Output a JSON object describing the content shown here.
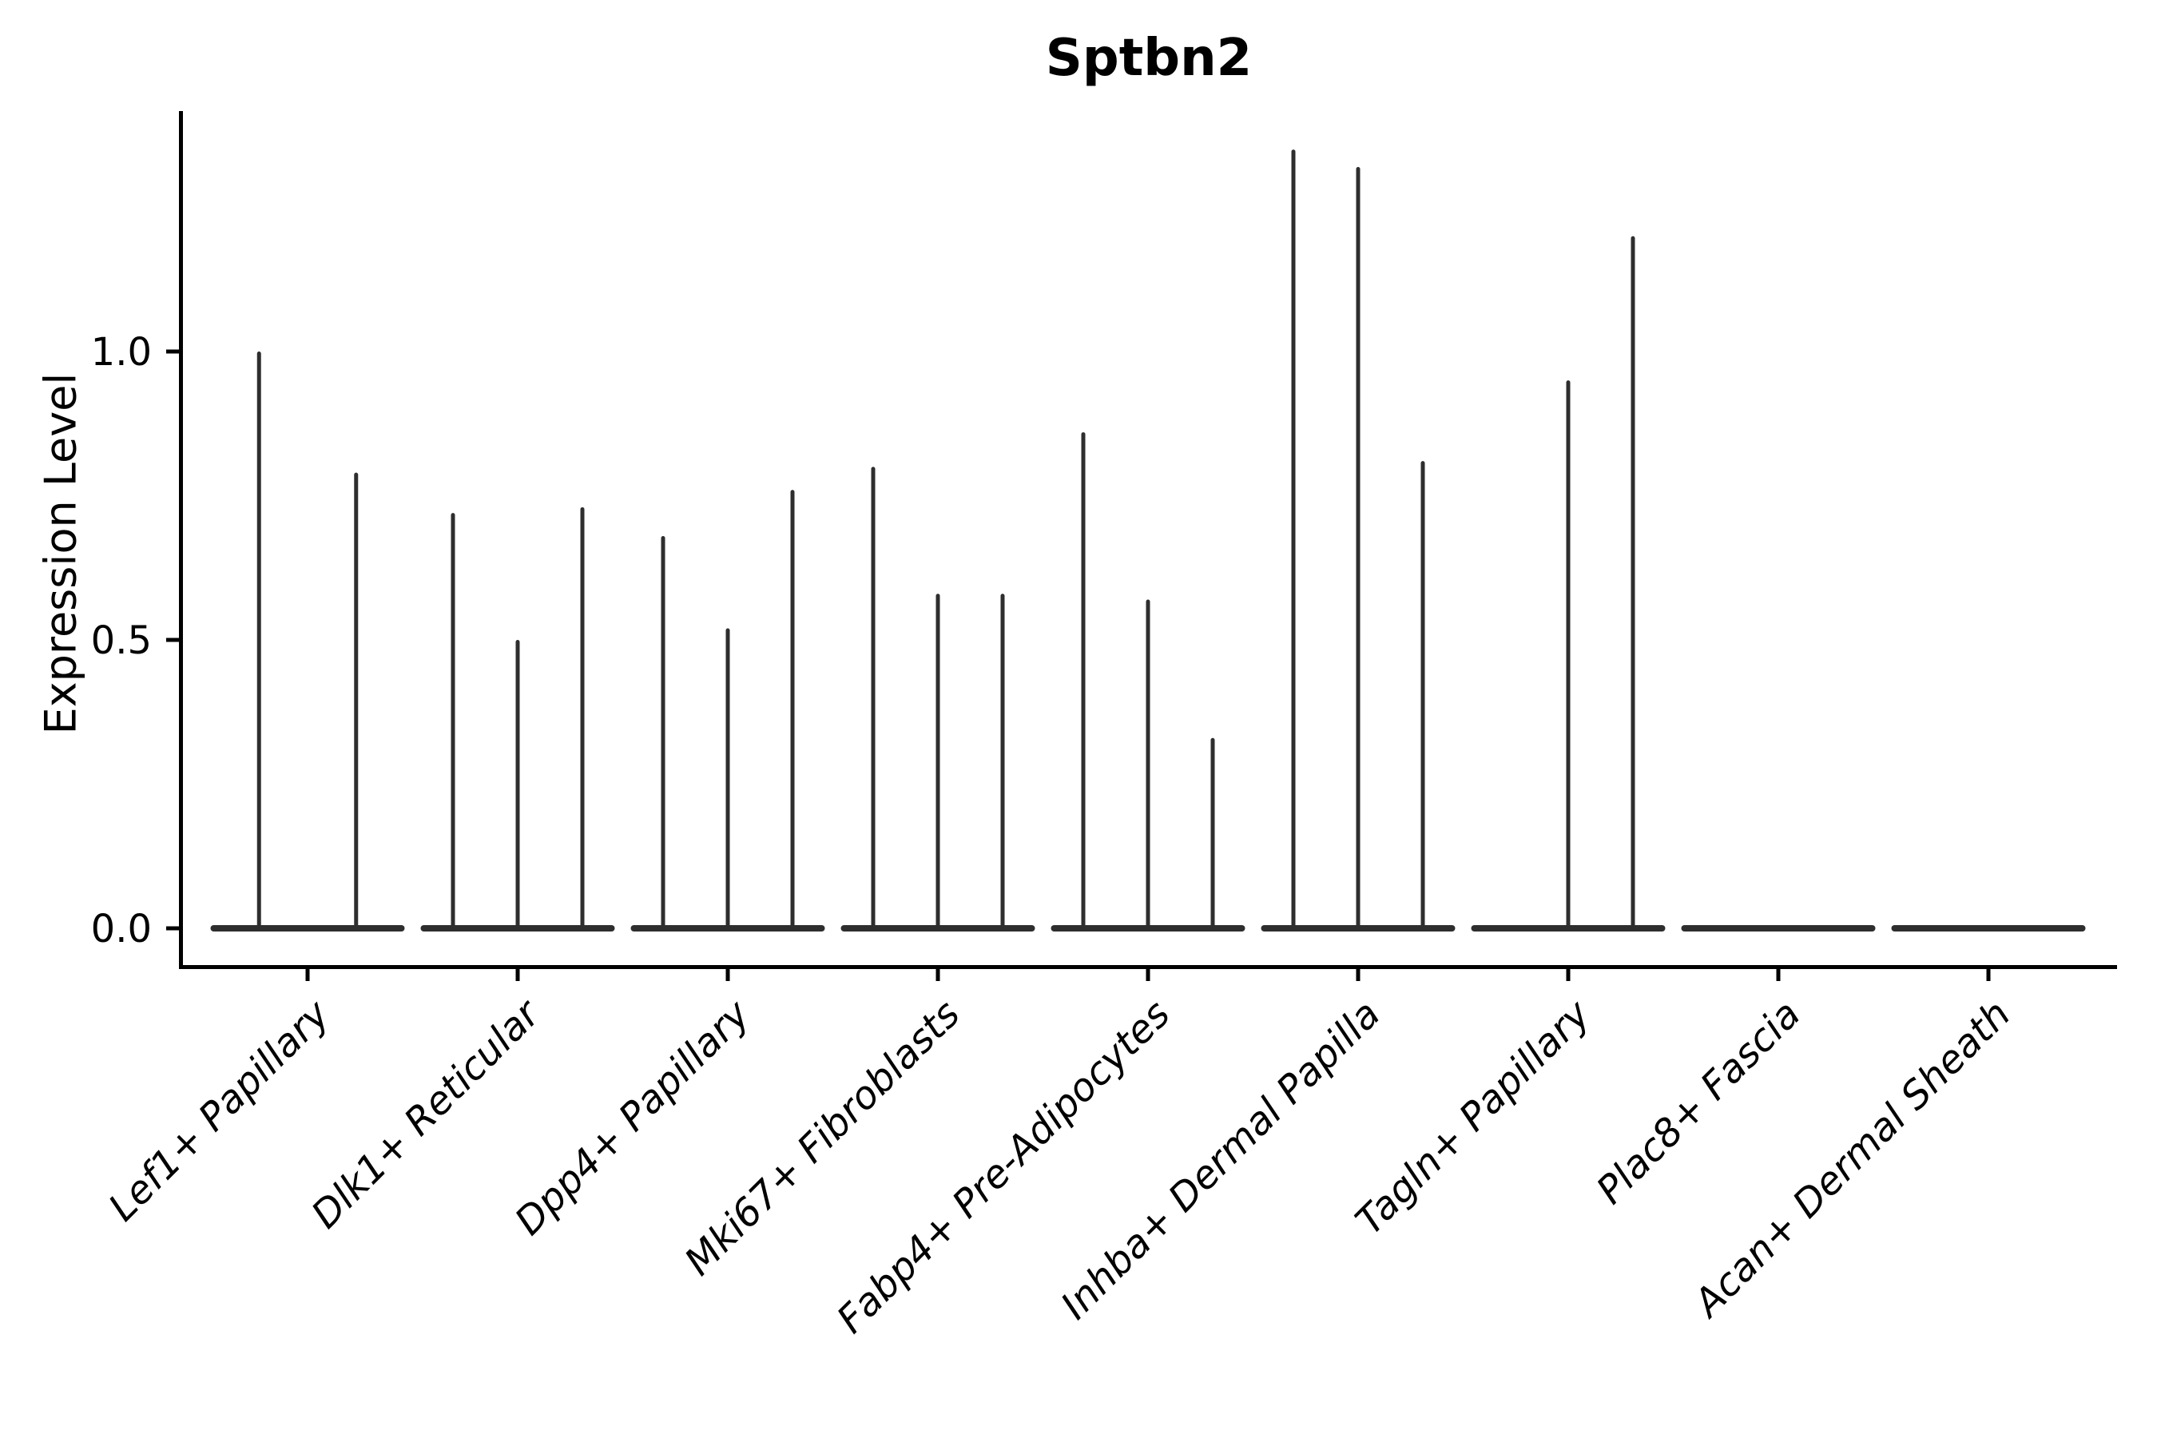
{
  "chart_data": {
    "type": "violin",
    "title": "Sptbn2",
    "ylabel": "Expression Level",
    "xlabel": "",
    "grid": false,
    "legend_position": "none",
    "ylim": [
      -0.066,
      1.417
    ],
    "ytick_values": [
      0.0,
      0.5,
      1.0
    ],
    "ytick_labels": [
      "0.0",
      "0.5",
      "1.0"
    ],
    "categories": [
      "Lef1+ Papillary",
      "Dlk1+ Reticular",
      "Dpp4+ Papillary",
      "Mki67+ Fibroblasts",
      "Fabp4+ Pre-Adipocytes",
      "Inhba+ Dermal Papilla",
      "Tagln+ Papillary",
      "Plac8+ Fascia",
      "Acan+ Dermal Sheath"
    ],
    "groups": [
      {
        "label": "Lef1+ Papillary",
        "violin_maxima": [
          1.0,
          0.79
        ]
      },
      {
        "label": "Dlk1+ Reticular",
        "violin_maxima": [
          0.72,
          0.5,
          0.73
        ]
      },
      {
        "label": "Dpp4+ Papillary",
        "violin_maxima": [
          0.68,
          0.52,
          0.76
        ]
      },
      {
        "label": "Mki67+ Fibroblasts",
        "violin_maxima": [
          0.8,
          0.58,
          0.58
        ]
      },
      {
        "label": "Fabp4+ Pre-Adipocytes",
        "violin_maxima": [
          0.86,
          0.57,
          0.33
        ]
      },
      {
        "label": "Inhba+ Dermal Papilla",
        "violin_maxima": [
          1.35,
          1.32,
          0.81
        ]
      },
      {
        "label": "Tagln+ Papillary",
        "violin_maxima": [
          0.0,
          0.95,
          1.2
        ]
      },
      {
        "label": "Plac8+ Fascia",
        "violin_maxima": [
          0.0,
          0.0
        ]
      },
      {
        "label": "Acan+ Dermal Sheath",
        "violin_maxima": [
          0.0,
          0.0
        ]
      }
    ],
    "note": "Each category shows flat violins at 0 expression with thin density spikes up to the listed maxima; Plac8+ Fascia and Acan+ Dermal Sheath have no cells above 0."
  },
  "colors": {
    "violin": "#2e2e2e",
    "axis": "#000000",
    "text": "#000000",
    "background": "#ffffff"
  }
}
